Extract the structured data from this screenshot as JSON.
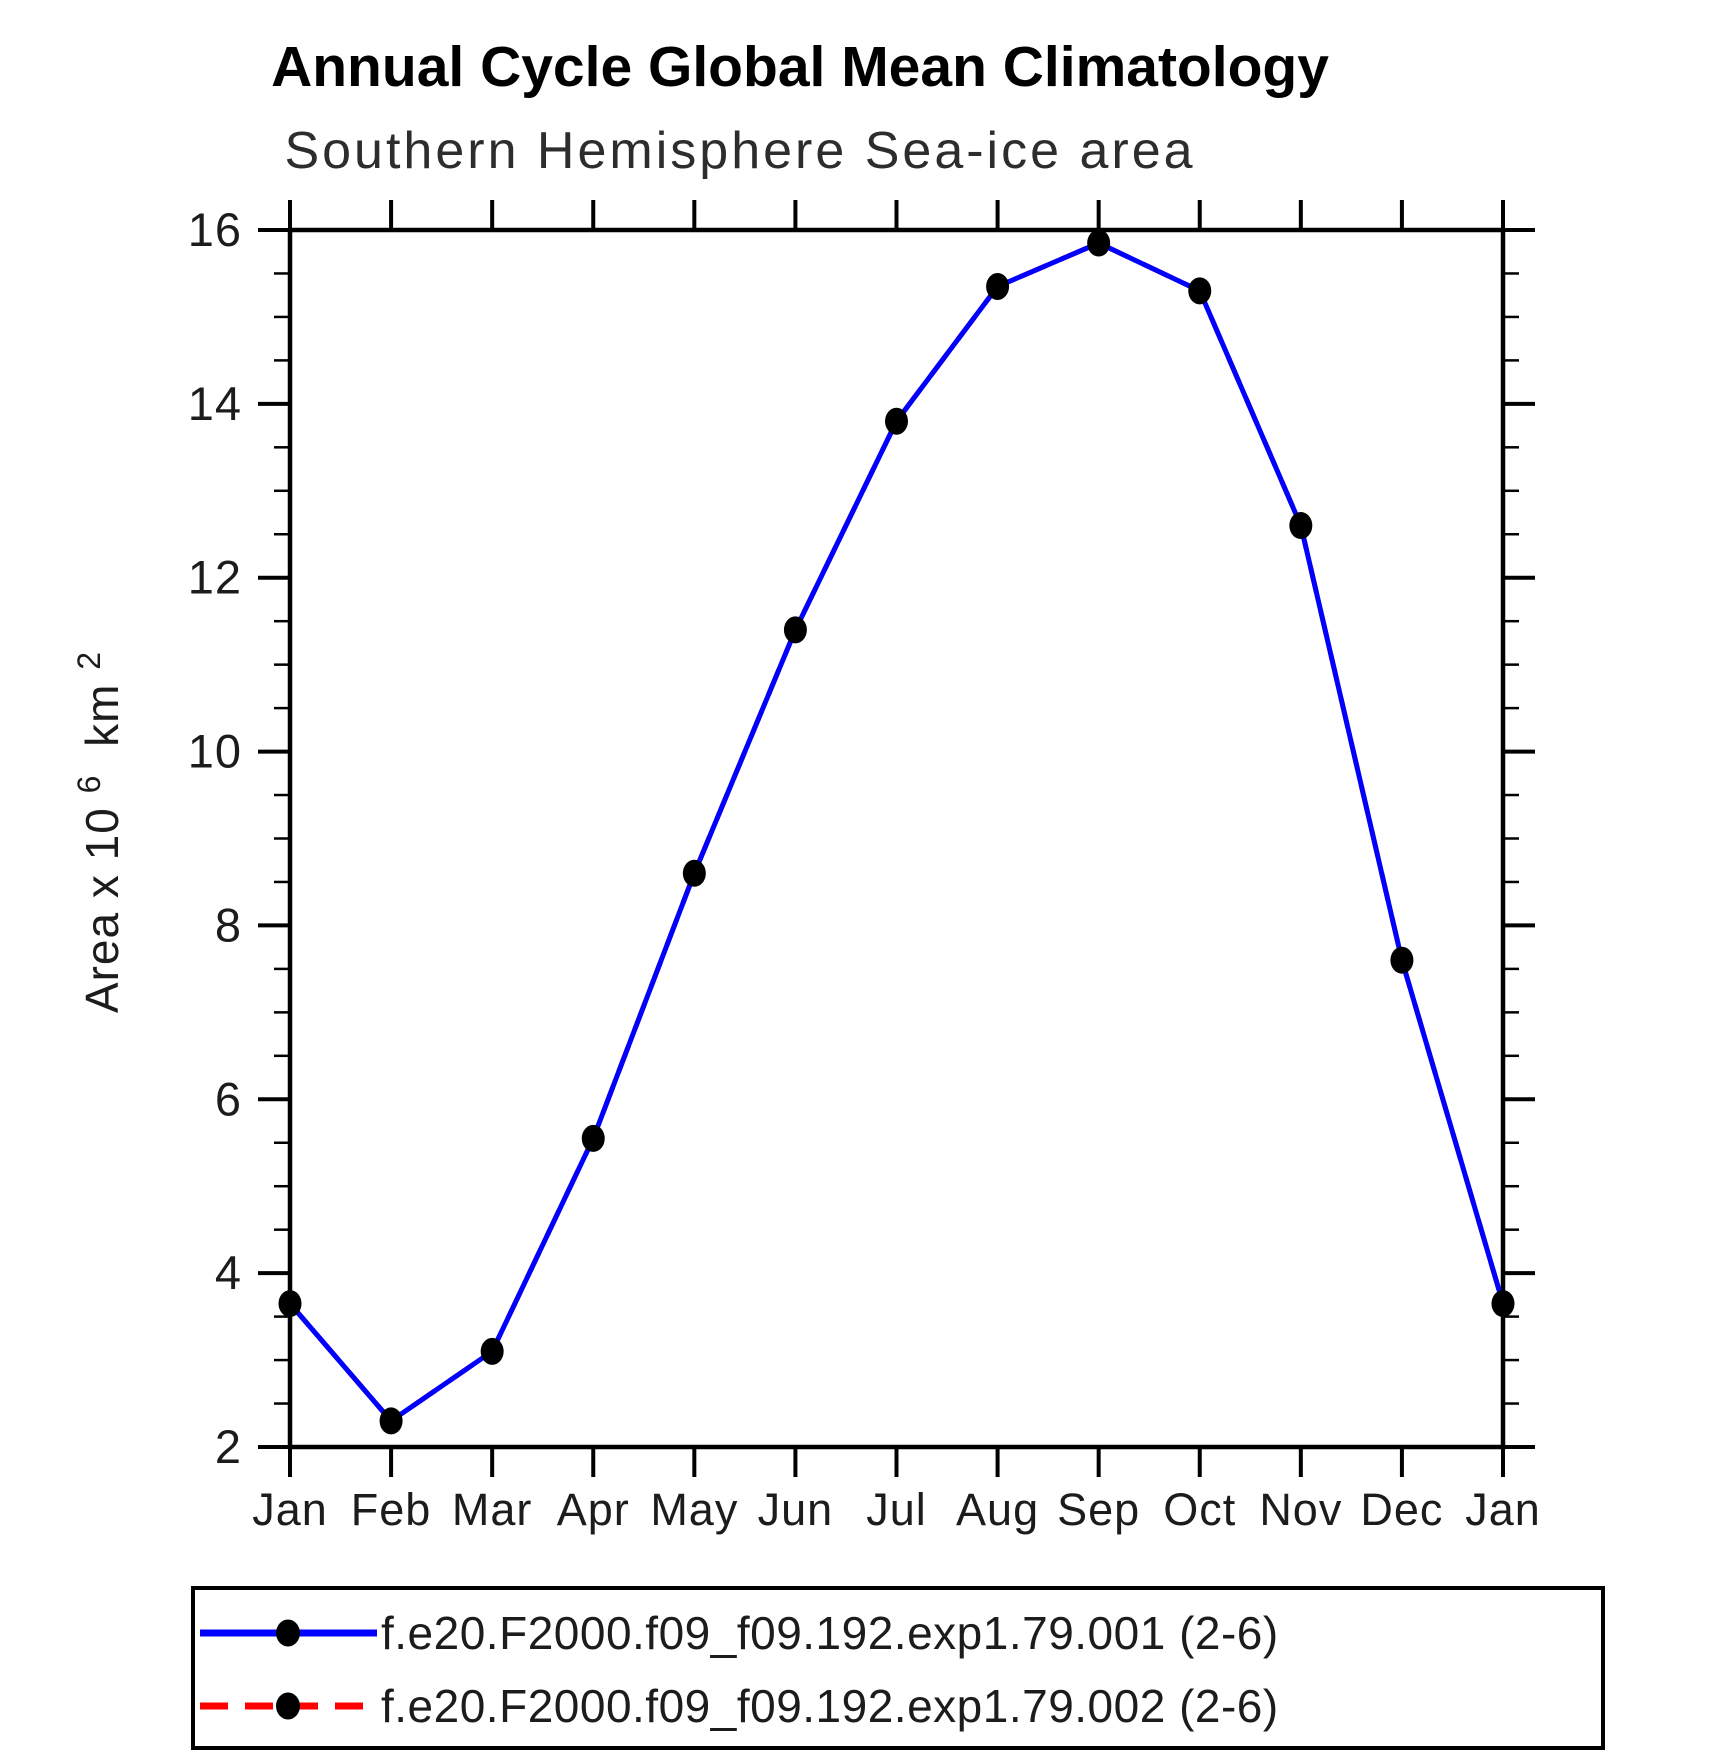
{
  "header": {
    "title": "Annual Cycle Global Mean Climatology",
    "subtitle": "Southern Hemisphere Sea-ice area"
  },
  "chart_data": {
    "type": "line",
    "title": "Annual Cycle Global Mean Climatology",
    "subtitle": "Southern Hemisphere Sea-ice area",
    "categories": [
      "Jan",
      "Feb",
      "Mar",
      "Apr",
      "May",
      "Jun",
      "Jul",
      "Aug",
      "Sep",
      "Oct",
      "Nov",
      "Dec",
      "Jan"
    ],
    "series": [
      {
        "name": "f.e20.F2000.f09_f09.192.exp1.79.001 (2-6)",
        "color": "#0000ff",
        "line_style": "solid",
        "marker": "filled-circle",
        "marker_color": "#000000",
        "values": [
          3.65,
          2.3,
          3.1,
          5.55,
          8.6,
          11.4,
          13.8,
          15.35,
          15.85,
          15.3,
          12.6,
          7.6,
          3.65
        ]
      },
      {
        "name": "f.e20.F2000.f09_f09.192.exp1.79.002 (2-6)",
        "color": "#ff0000",
        "line_style": "dashed",
        "marker": "filled-circle",
        "marker_color": "#000000",
        "values": [
          3.65,
          2.3,
          3.1,
          5.55,
          8.6,
          11.4,
          13.8,
          15.35,
          15.85,
          15.3,
          12.6,
          7.6,
          3.65
        ],
        "overlaps_series_1": true
      }
    ],
    "xlabel": "",
    "ylabel": "Area x 10^6 km^2",
    "ylabel_parts": {
      "pre": "Area x 10",
      "sup1": "6",
      "mid": "km",
      "sup2": "2"
    },
    "ylim": [
      2,
      16
    ],
    "ytick_major_step": 2,
    "ytick_minor_step": 0.5,
    "ytick_labels": [
      "2",
      "4",
      "6",
      "8",
      "10",
      "12",
      "14",
      "16"
    ],
    "grid": "off",
    "legend_position": "bottom"
  },
  "legend": {
    "entries": [
      {
        "label": "f.e20.F2000.f09_f09.192.exp1.79.001 (2-6)",
        "line_color": "#0000ff",
        "line_style": "solid"
      },
      {
        "label": "f.e20.F2000.f09_f09.192.exp1.79.002 (2-6)",
        "line_color": "#ff0000",
        "line_style": "dashed"
      }
    ]
  }
}
